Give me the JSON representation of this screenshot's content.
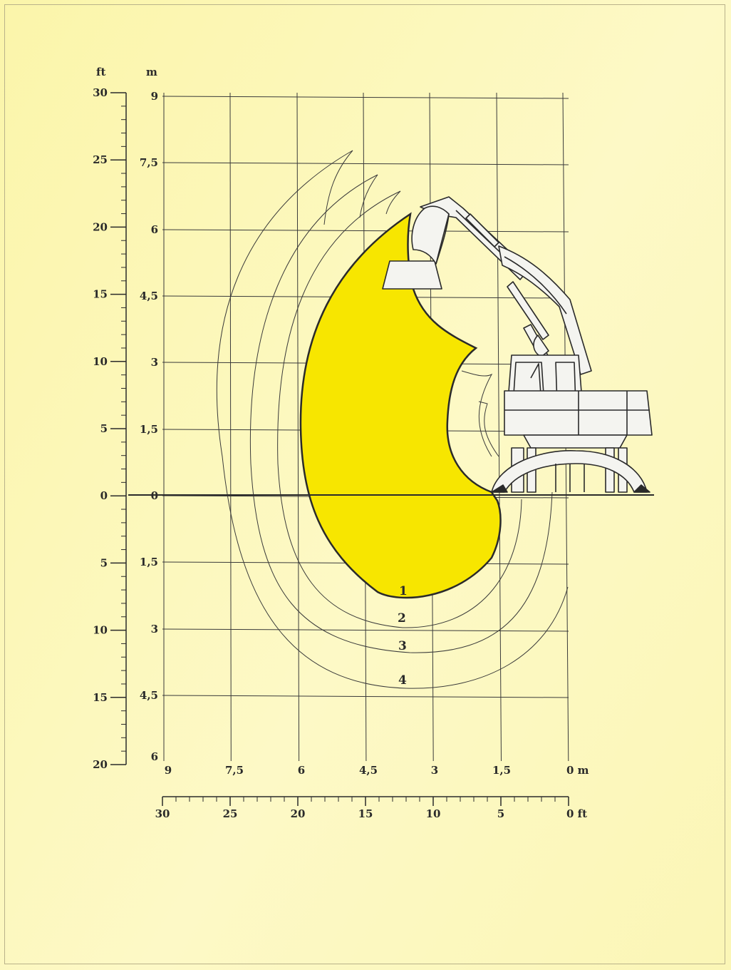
{
  "axes": {
    "left_ft": {
      "unit": "ft",
      "labels": [
        "30",
        "25",
        "20",
        "15",
        "10",
        "5",
        "0",
        "5",
        "10",
        "15",
        "20"
      ]
    },
    "left_m": {
      "unit": "m",
      "labels": [
        "9",
        "7,5",
        "6",
        "4,5",
        "3",
        "1,5",
        "0",
        "1,5",
        "3",
        "4,5",
        "6"
      ]
    },
    "bottom_m": {
      "unit": "0 m",
      "labels": [
        "9",
        "7,5",
        "6",
        "4,5",
        "3",
        "1,5"
      ]
    },
    "bottom_ft": {
      "unit": "0 ft",
      "labels": [
        "30",
        "25",
        "20",
        "15",
        "10",
        "5"
      ]
    }
  },
  "curves": [
    {
      "label": "1"
    },
    {
      "label": "2"
    },
    {
      "label": "3"
    },
    {
      "label": "4"
    }
  ],
  "colors": {
    "background": "#fbf7b5",
    "work_area": "#f7e600",
    "lines": "#3a3a3a",
    "machine_fill": "#f4f4f0"
  },
  "icons": {
    "machine": "excavator-icon"
  }
}
